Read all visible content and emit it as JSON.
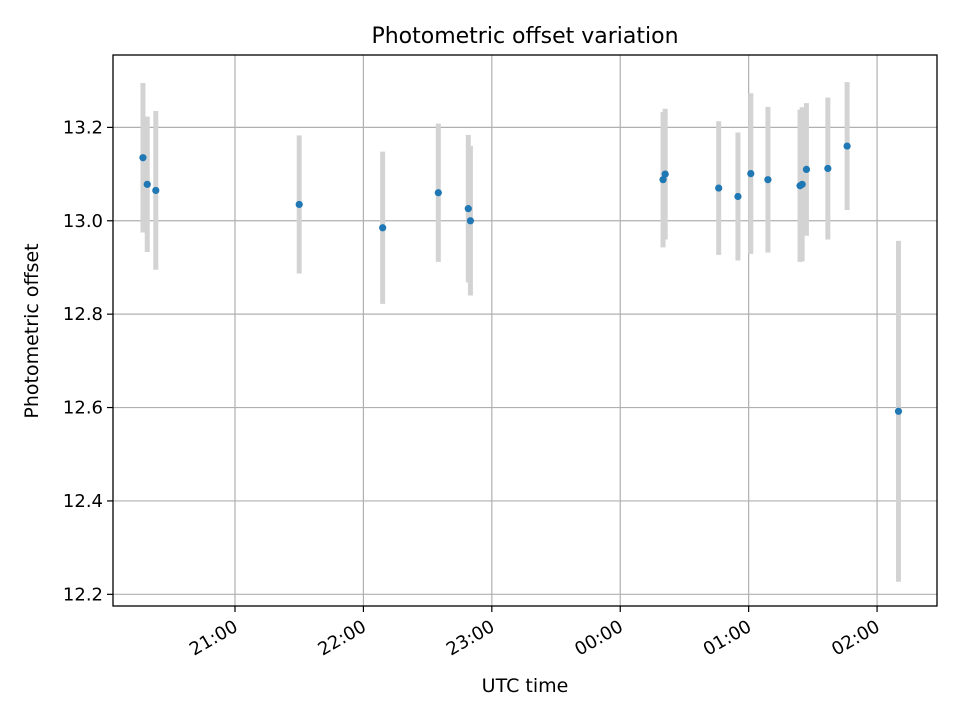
{
  "chart_data": {
    "type": "scatter",
    "title": "Photometric offset variation",
    "xlabel": "UTC time",
    "ylabel": "Photometric offset",
    "grid": true,
    "x_tick_labels": [
      "21:00",
      "22:00",
      "23:00",
      "00:00",
      "01:00",
      "02:00"
    ],
    "y_tick_labels": [
      "12.2",
      "12.4",
      "12.6",
      "12.8",
      "13.0",
      "13.2"
    ],
    "xlim": [
      "20:03",
      "02:28"
    ],
    "ylim": [
      12.175,
      13.355
    ],
    "series": [
      {
        "points": [
          {
            "x": "20:17",
            "y": 13.135,
            "yerr": 0.16
          },
          {
            "x": "20:19",
            "y": 13.078,
            "yerr": 0.145
          },
          {
            "x": "20:23",
            "y": 13.065,
            "yerr": 0.17
          },
          {
            "x": "21:30",
            "y": 13.035,
            "yerr": 0.148
          },
          {
            "x": "22:09",
            "y": 12.985,
            "yerr": 0.163
          },
          {
            "x": "22:35",
            "y": 13.06,
            "yerr": 0.148
          },
          {
            "x": "22:49",
            "y": 13.026,
            "yerr": 0.158
          },
          {
            "x": "22:50",
            "y": 13.0,
            "yerr": 0.16
          },
          {
            "x": "00:20",
            "y": 13.088,
            "yerr": 0.145
          },
          {
            "x": "00:21",
            "y": 13.1,
            "yerr": 0.14
          },
          {
            "x": "00:46",
            "y": 13.07,
            "yerr": 0.143
          },
          {
            "x": "00:55",
            "y": 13.052,
            "yerr": 0.137
          },
          {
            "x": "01:01",
            "y": 13.101,
            "yerr": 0.172
          },
          {
            "x": "01:09",
            "y": 13.088,
            "yerr": 0.156
          },
          {
            "x": "01:24",
            "y": 13.075,
            "yerr": 0.163
          },
          {
            "x": "01:25",
            "y": 13.078,
            "yerr": 0.165
          },
          {
            "x": "01:27",
            "y": 13.11,
            "yerr": 0.142
          },
          {
            "x": "01:37",
            "y": 13.112,
            "yerr": 0.152
          },
          {
            "x": "01:46",
            "y": 13.16,
            "yerr": 0.137
          },
          {
            "x": "02:10",
            "y": 12.592,
            "yerr": 0.365
          }
        ],
        "marker_color": "#1f77b4",
        "errorbar_color": "#d3d3d3"
      }
    ]
  }
}
